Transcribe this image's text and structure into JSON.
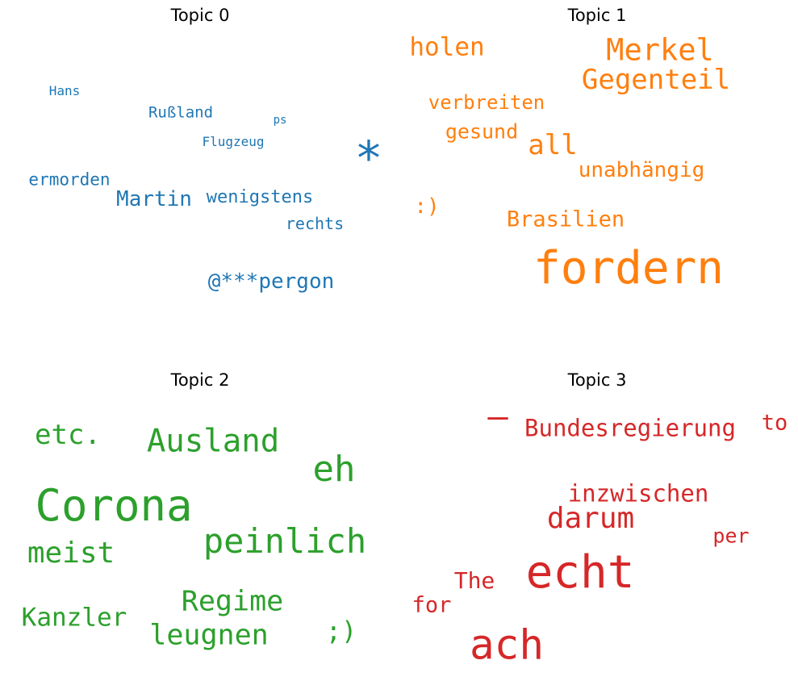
{
  "chart_data": [
    {
      "type": "wordcloud",
      "title": "Topic 0",
      "color": "#1f77b4",
      "words": [
        "*",
        "Martin",
        "@***pergon",
        "wenigstens",
        "ermorden",
        "rechts",
        "Rußland",
        "Hans",
        "Flugzeug",
        "ps"
      ]
    },
    {
      "type": "wordcloud",
      "title": "Topic 1",
      "color": "#ff7f0e",
      "words": [
        "fordern",
        "Merkel",
        "Gegenteil",
        "holen",
        "all",
        "unabhängig",
        "Brasilien",
        "verbreiten",
        "gesund",
        ":)"
      ]
    },
    {
      "type": "wordcloud",
      "title": "Topic 2",
      "color": "#2ca02c",
      "words": [
        "Corona",
        "eh",
        "peinlich",
        "Ausland",
        "meist",
        "Regime",
        "etc.",
        "Kanzler",
        "leugnen",
        ";)"
      ]
    },
    {
      "type": "wordcloud",
      "title": "Topic 3",
      "color": "#d62728",
      "words": [
        "echt",
        "ach",
        "darum",
        "Bundesregierung",
        "—",
        "inzwischen",
        "The",
        "to",
        "per",
        "for"
      ]
    }
  ]
}
